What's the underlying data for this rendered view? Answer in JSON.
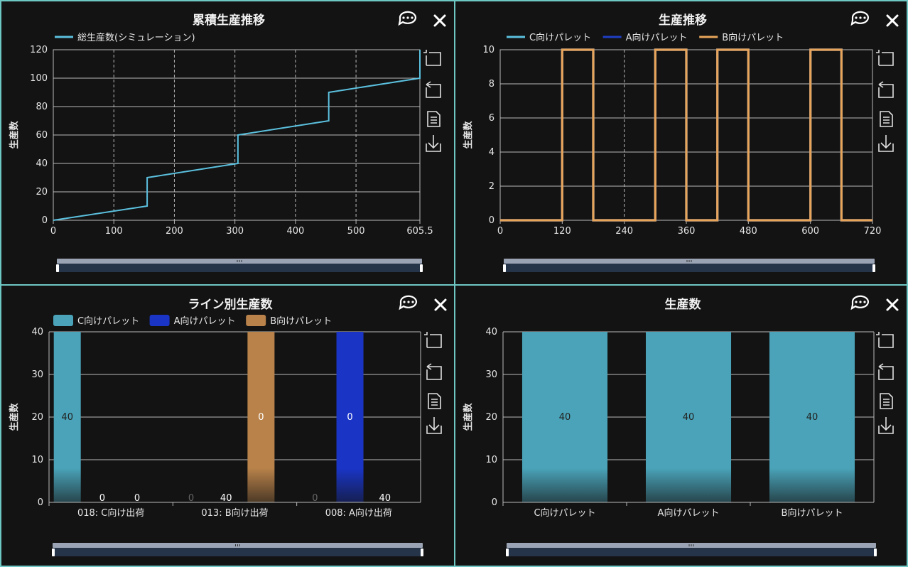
{
  "colors": {
    "c_pallet": "#5bc0de",
    "a_pallet": "#1f3fc4",
    "b_pallet": "#e8a55a",
    "c_bar": "#4aa3b8",
    "a_bar": "#1a35c6",
    "b_bar": "#b8824a",
    "grid": "#b9b9b9",
    "frame": "#6fc7c4"
  },
  "icons": [
    "comment-icon",
    "close-icon",
    "zoom-icon",
    "zoom-reset-icon",
    "data-view-icon",
    "save-image-icon"
  ],
  "charts": [
    {
      "id": "p1",
      "chart_data": {
        "type": "line",
        "title": "累積生産推移",
        "ylabel": "生産数",
        "xlabel": "",
        "ylim": [
          0,
          120
        ],
        "xlim": [
          0,
          605.5
        ],
        "x_ticks": [
          "0",
          "100",
          "200",
          "300",
          "400",
          "500",
          "605.5"
        ],
        "y_ticks": [
          "0",
          "20",
          "40",
          "60",
          "80",
          "100",
          "120"
        ],
        "series": [
          {
            "name": "総生産数(シミュレーション)",
            "color_key": "c_pallet",
            "points": [
              [
                0,
                0
              ],
              [
                155,
                10
              ],
              [
                155,
                30
              ],
              [
                305,
                40
              ],
              [
                305,
                60
              ],
              [
                455,
                70
              ],
              [
                455,
                90
              ],
              [
                605.5,
                100
              ],
              [
                605.5,
                120
              ]
            ]
          }
        ]
      }
    },
    {
      "id": "p2",
      "chart_data": {
        "type": "line",
        "title": "生産推移",
        "ylabel": "生産数",
        "xlabel": "",
        "ylim": [
          0,
          10
        ],
        "xlim": [
          0,
          720
        ],
        "x_ticks": [
          "0",
          "120",
          "240",
          "360",
          "480",
          "600",
          "720"
        ],
        "y_ticks": [
          "0",
          "2",
          "4",
          "6",
          "8",
          "10"
        ],
        "series": [
          {
            "name": "C向けパレット",
            "color_key": "c_pallet",
            "points": [
              [
                0,
                0
              ],
              [
                120,
                0
              ],
              [
                120,
                10
              ],
              [
                180,
                10
              ],
              [
                180,
                0
              ],
              [
                300,
                0
              ],
              [
                300,
                10
              ],
              [
                360,
                10
              ],
              [
                360,
                0
              ],
              [
                420,
                0
              ],
              [
                420,
                10
              ],
              [
                480,
                10
              ],
              [
                480,
                0
              ],
              [
                600,
                0
              ],
              [
                600,
                10
              ],
              [
                660,
                10
              ],
              [
                660,
                0
              ],
              [
                720,
                0
              ]
            ]
          },
          {
            "name": "A向けパレット",
            "color_key": "a_pallet",
            "points": [
              [
                0,
                0
              ],
              [
                120,
                0
              ],
              [
                120,
                10
              ],
              [
                180,
                10
              ],
              [
                180,
                0
              ],
              [
                300,
                0
              ],
              [
                300,
                10
              ],
              [
                360,
                10
              ],
              [
                360,
                0
              ],
              [
                420,
                0
              ],
              [
                420,
                10
              ],
              [
                480,
                10
              ],
              [
                480,
                0
              ],
              [
                600,
                0
              ],
              [
                600,
                10
              ],
              [
                660,
                10
              ],
              [
                660,
                0
              ],
              [
                720,
                0
              ]
            ]
          },
          {
            "name": "B向けパレット",
            "color_key": "b_pallet",
            "points": [
              [
                0,
                0
              ],
              [
                120,
                0
              ],
              [
                120,
                10
              ],
              [
                180,
                10
              ],
              [
                180,
                0
              ],
              [
                300,
                0
              ],
              [
                300,
                10
              ],
              [
                360,
                10
              ],
              [
                360,
                0
              ],
              [
                420,
                0
              ],
              [
                420,
                10
              ],
              [
                480,
                10
              ],
              [
                480,
                0
              ],
              [
                600,
                0
              ],
              [
                600,
                10
              ],
              [
                660,
                10
              ],
              [
                660,
                0
              ],
              [
                720,
                0
              ]
            ]
          }
        ]
      }
    },
    {
      "id": "p3",
      "chart_data": {
        "type": "bar",
        "title": "ライン別生産数",
        "ylabel": "生産数",
        "xlabel": "",
        "ylim": [
          0,
          40
        ],
        "y_ticks": [
          "0",
          "10",
          "20",
          "30",
          "40"
        ],
        "categories": [
          "018: C向け出荷",
          "013: B向け出荷",
          "008: A向け出荷"
        ],
        "series": [
          {
            "name": "C向けパレット",
            "color_key": "c_bar",
            "values": [
              40,
              0,
              0
            ]
          },
          {
            "name": "A向けパレット",
            "color_key": "a_bar",
            "values": [
              0,
              0,
              40
            ]
          },
          {
            "name": "B向けパレット",
            "color_key": "b_bar",
            "values": [
              0,
              40,
              0
            ]
          }
        ],
        "bar_labels": [
          [
            "40",
            "0",
            "0"
          ],
          [
            "0",
            "40",
            "0"
          ],
          [
            "0",
            "0",
            "40"
          ]
        ]
      }
    },
    {
      "id": "p4",
      "chart_data": {
        "type": "bar",
        "title": "生産数",
        "ylabel": "生産数",
        "xlabel": "",
        "ylim": [
          0,
          40
        ],
        "y_ticks": [
          "0",
          "10",
          "20",
          "30",
          "40"
        ],
        "categories": [
          "C向けパレット",
          "A向けパレット",
          "B向けパレット"
        ],
        "series": [
          {
            "name": "",
            "color_key": "c_bar",
            "values": [
              40,
              40,
              40
            ]
          }
        ],
        "bar_labels": [
          [
            "40",
            "40",
            "40"
          ]
        ]
      }
    }
  ]
}
